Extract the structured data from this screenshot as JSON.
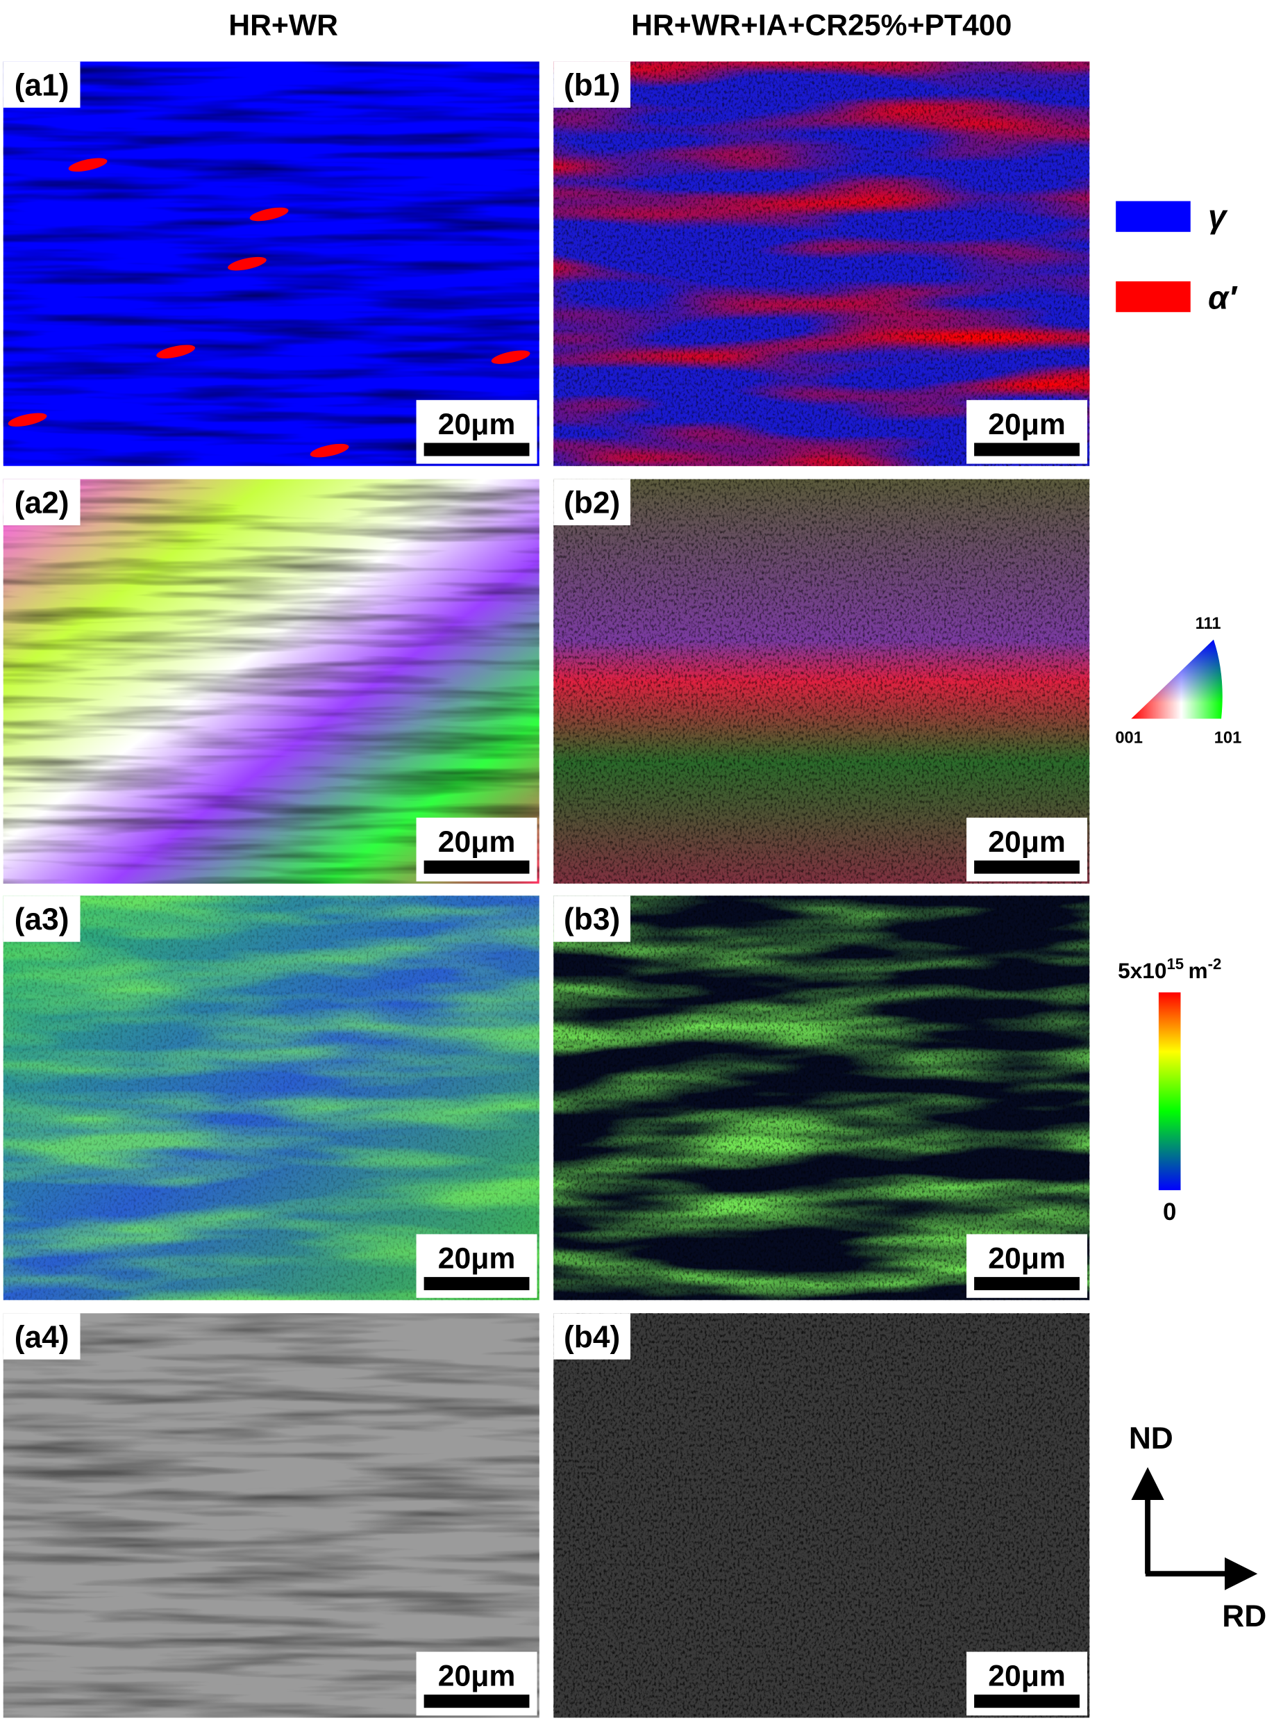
{
  "header": {
    "left_title": "HR+WR",
    "right_title": "HR+WR+IA+CR25%+PT400"
  },
  "panels": [
    {
      "label": "(a1)",
      "scale_bar": "20μm"
    },
    {
      "label": "(b1)",
      "scale_bar": "20μm"
    },
    {
      "label": "(a2)",
      "scale_bar": "20μm"
    },
    {
      "label": "(b2)",
      "scale_bar": "20μm"
    },
    {
      "label": "(a3)",
      "scale_bar": "20μm"
    },
    {
      "label": "(b3)",
      "scale_bar": "20μm"
    },
    {
      "label": "(a4)",
      "scale_bar": "20μm"
    },
    {
      "label": "(b4)",
      "scale_bar": "20μm"
    }
  ],
  "phase_legend": {
    "austenite": "γ",
    "martensite": "α′"
  },
  "ipf_key": {
    "top": "111",
    "left": "001",
    "right": "101"
  },
  "colorbar": {
    "max_base": "5x10",
    "max_exp": "15",
    "max_unit": "m",
    "max_unit_exp": "-2",
    "min_label": "0"
  },
  "axes": {
    "vertical": "ND",
    "horizontal": "RD"
  }
}
